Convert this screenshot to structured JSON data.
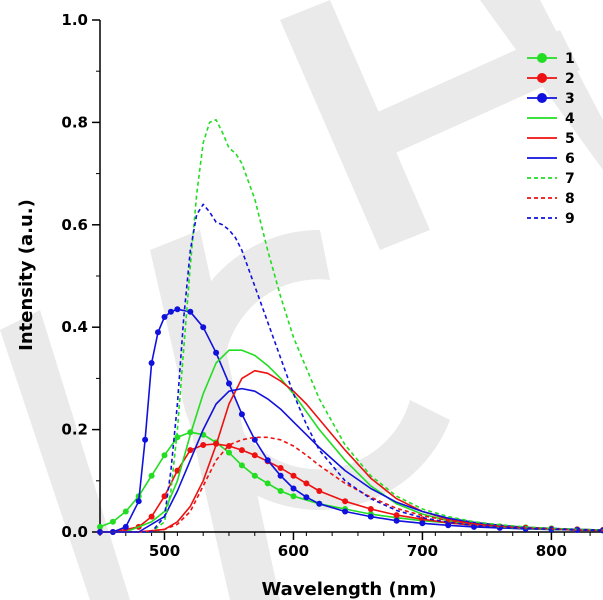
{
  "chart_data": {
    "type": "line",
    "title": "",
    "xlabel": "Wavelength (nm)",
    "ylabel": "Intensity (a.u.)",
    "xlim": [
      450,
      840
    ],
    "ylim": [
      0,
      1.0
    ],
    "xticks": [
      500,
      600,
      700,
      800
    ],
    "yticks": [
      0.0,
      0.2,
      0.4,
      0.6,
      0.8,
      1.0
    ],
    "ytick_labels": [
      "0.0",
      "0.2",
      "0.4",
      "0.6",
      "0.8",
      "1.0"
    ],
    "grid": false,
    "legend": "top-right",
    "watermark_text": "WILEY-VCH",
    "series": [
      {
        "name": "1",
        "color": "#22dd22",
        "style": "line-marker",
        "x": [
          450,
          460,
          470,
          480,
          490,
          500,
          510,
          520,
          530,
          540,
          550,
          560,
          570,
          580,
          590,
          600,
          620,
          640,
          660,
          680,
          700,
          720,
          740,
          760,
          780,
          800,
          820,
          840
        ],
        "y": [
          0.01,
          0.02,
          0.04,
          0.07,
          0.11,
          0.15,
          0.185,
          0.195,
          0.19,
          0.175,
          0.155,
          0.13,
          0.11,
          0.095,
          0.08,
          0.07,
          0.055,
          0.045,
          0.035,
          0.028,
          0.022,
          0.018,
          0.014,
          0.011,
          0.009,
          0.007,
          0.005,
          0.004
        ]
      },
      {
        "name": "2",
        "color": "#ee1111",
        "style": "line-marker",
        "x": [
          450,
          460,
          470,
          480,
          490,
          500,
          510,
          520,
          530,
          540,
          550,
          560,
          570,
          580,
          590,
          600,
          610,
          620,
          640,
          660,
          680,
          700,
          720,
          740,
          760,
          780,
          800,
          820,
          840
        ],
        "y": [
          0.0,
          0.0,
          0.005,
          0.01,
          0.03,
          0.07,
          0.12,
          0.16,
          0.17,
          0.172,
          0.168,
          0.16,
          0.15,
          0.138,
          0.125,
          0.11,
          0.095,
          0.08,
          0.06,
          0.045,
          0.033,
          0.025,
          0.018,
          0.013,
          0.01,
          0.008,
          0.006,
          0.005,
          0.004
        ]
      },
      {
        "name": "3",
        "color": "#1111dd",
        "style": "line-marker",
        "x": [
          450,
          460,
          470,
          480,
          485,
          490,
          495,
          500,
          505,
          510,
          520,
          530,
          540,
          550,
          560,
          570,
          580,
          590,
          600,
          610,
          620,
          640,
          660,
          680,
          700,
          720,
          740,
          760,
          780,
          800,
          820,
          840
        ],
        "y": [
          0.0,
          0.0,
          0.01,
          0.06,
          0.18,
          0.33,
          0.39,
          0.42,
          0.43,
          0.435,
          0.43,
          0.4,
          0.35,
          0.29,
          0.23,
          0.18,
          0.14,
          0.11,
          0.085,
          0.068,
          0.055,
          0.04,
          0.03,
          0.022,
          0.017,
          0.013,
          0.01,
          0.008,
          0.006,
          0.005,
          0.004,
          0.003
        ]
      },
      {
        "name": "4",
        "color": "#22dd22",
        "style": "solid",
        "x": [
          450,
          470,
          490,
          500,
          510,
          520,
          530,
          540,
          550,
          560,
          570,
          580,
          590,
          600,
          610,
          620,
          640,
          660,
          680,
          700,
          720,
          740,
          760,
          780,
          800,
          820,
          840
        ],
        "y": [
          0.0,
          0.0,
          0.02,
          0.04,
          0.1,
          0.19,
          0.27,
          0.33,
          0.355,
          0.355,
          0.345,
          0.325,
          0.3,
          0.27,
          0.235,
          0.2,
          0.14,
          0.09,
          0.055,
          0.035,
          0.022,
          0.015,
          0.01,
          0.007,
          0.005,
          0.004,
          0.003
        ]
      },
      {
        "name": "5",
        "color": "#ee1111",
        "style": "solid",
        "x": [
          450,
          480,
          500,
          510,
          520,
          530,
          540,
          550,
          560,
          570,
          580,
          590,
          600,
          610,
          620,
          640,
          660,
          680,
          700,
          720,
          740,
          760,
          780,
          800,
          820,
          840
        ],
        "y": [
          0.0,
          0.0,
          0.005,
          0.02,
          0.05,
          0.1,
          0.17,
          0.25,
          0.3,
          0.315,
          0.31,
          0.295,
          0.275,
          0.25,
          0.22,
          0.16,
          0.105,
          0.065,
          0.04,
          0.025,
          0.016,
          0.011,
          0.008,
          0.006,
          0.004,
          0.003
        ]
      },
      {
        "name": "6",
        "color": "#1111dd",
        "style": "solid",
        "x": [
          450,
          480,
          500,
          510,
          520,
          530,
          540,
          550,
          560,
          570,
          580,
          590,
          600,
          610,
          620,
          640,
          660,
          680,
          700,
          720,
          740,
          760,
          780,
          800,
          820,
          840
        ],
        "y": [
          0.0,
          0.0,
          0.03,
          0.08,
          0.14,
          0.2,
          0.25,
          0.275,
          0.28,
          0.275,
          0.26,
          0.24,
          0.215,
          0.19,
          0.165,
          0.12,
          0.085,
          0.058,
          0.04,
          0.027,
          0.019,
          0.013,
          0.009,
          0.007,
          0.005,
          0.004
        ]
      },
      {
        "name": "7",
        "color": "#22dd22",
        "style": "dashed",
        "x": [
          450,
          490,
          500,
          505,
          510,
          515,
          520,
          525,
          530,
          535,
          540,
          545,
          550,
          555,
          560,
          570,
          580,
          590,
          600,
          610,
          620,
          640,
          660,
          680,
          700,
          720,
          740,
          760,
          780,
          800,
          820,
          840
        ],
        "y": [
          0.0,
          0.0,
          0.02,
          0.08,
          0.2,
          0.36,
          0.52,
          0.66,
          0.76,
          0.8,
          0.805,
          0.78,
          0.75,
          0.74,
          0.72,
          0.65,
          0.55,
          0.46,
          0.38,
          0.32,
          0.26,
          0.17,
          0.11,
          0.07,
          0.045,
          0.03,
          0.02,
          0.014,
          0.01,
          0.007,
          0.005,
          0.004
        ]
      },
      {
        "name": "8",
        "color": "#ee1111",
        "style": "dashed",
        "x": [
          450,
          480,
          500,
          510,
          520,
          530,
          540,
          550,
          560,
          570,
          580,
          590,
          600,
          610,
          620,
          640,
          660,
          680,
          700,
          720,
          740,
          760,
          780,
          800,
          820,
          840
        ],
        "y": [
          0.0,
          0.0,
          0.005,
          0.015,
          0.04,
          0.09,
          0.14,
          0.17,
          0.18,
          0.185,
          0.185,
          0.18,
          0.168,
          0.15,
          0.13,
          0.095,
          0.068,
          0.046,
          0.032,
          0.022,
          0.015,
          0.011,
          0.008,
          0.006,
          0.004,
          0.003
        ]
      },
      {
        "name": "9",
        "color": "#1111dd",
        "style": "dashed",
        "x": [
          450,
          490,
          500,
          505,
          510,
          515,
          520,
          525,
          530,
          535,
          540,
          545,
          550,
          555,
          560,
          570,
          580,
          590,
          600,
          610,
          620,
          640,
          660,
          680,
          700,
          720,
          740,
          760,
          780,
          800,
          820,
          840
        ],
        "y": [
          0.0,
          0.0,
          0.03,
          0.12,
          0.25,
          0.42,
          0.55,
          0.62,
          0.64,
          0.625,
          0.605,
          0.6,
          0.59,
          0.575,
          0.55,
          0.48,
          0.41,
          0.34,
          0.27,
          0.21,
          0.16,
          0.1,
          0.065,
          0.042,
          0.028,
          0.019,
          0.013,
          0.009,
          0.007,
          0.005,
          0.004,
          0.003
        ]
      }
    ]
  }
}
